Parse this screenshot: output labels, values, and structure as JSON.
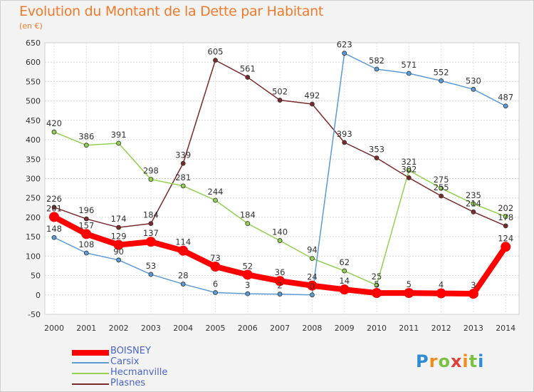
{
  "title": "Evolution du Montant de la Dette par Habitant",
  "unit": "(en €)",
  "logo": {
    "text": "Proxiti",
    "letters": [
      "P",
      "r",
      "o",
      "x",
      "i",
      "t",
      "i"
    ]
  },
  "colors": {
    "BOISNEY": "#ff0000",
    "Carsix": "#5b9bd5",
    "Hecmanville": "#92d050",
    "Plasnes": "#7b2a2a"
  },
  "chart_data": {
    "type": "line",
    "x": [
      "2000",
      "2001",
      "2002",
      "2003",
      "2004",
      "2005",
      "2006",
      "2007",
      "2008",
      "2009",
      "2010",
      "2011",
      "2012",
      "2013",
      "2014"
    ],
    "ylim": [
      -50,
      650
    ],
    "yticks": [
      -50,
      0,
      50,
      100,
      150,
      200,
      250,
      300,
      350,
      400,
      450,
      500,
      550,
      600,
      650
    ],
    "grid": true,
    "legend": "bottom-left",
    "series": [
      {
        "name": "BOISNEY",
        "values": [
          201,
          157,
          129,
          137,
          114,
          73,
          52,
          36,
          24,
          14,
          5,
          5,
          4,
          3,
          124
        ]
      },
      {
        "name": "Carsix",
        "values": [
          148,
          108,
          90,
          53,
          28,
          6,
          3,
          2,
          0,
          623,
          582,
          571,
          552,
          530,
          487
        ]
      },
      {
        "name": "Hecmanville",
        "values": [
          420,
          386,
          391,
          298,
          281,
          244,
          184,
          140,
          94,
          62,
          25,
          321,
          275,
          235,
          202
        ]
      },
      {
        "name": "Plasnes",
        "values": [
          226,
          196,
          174,
          184,
          339,
          605,
          561,
          502,
          492,
          393,
          353,
          302,
          255,
          214,
          178
        ]
      }
    ]
  }
}
